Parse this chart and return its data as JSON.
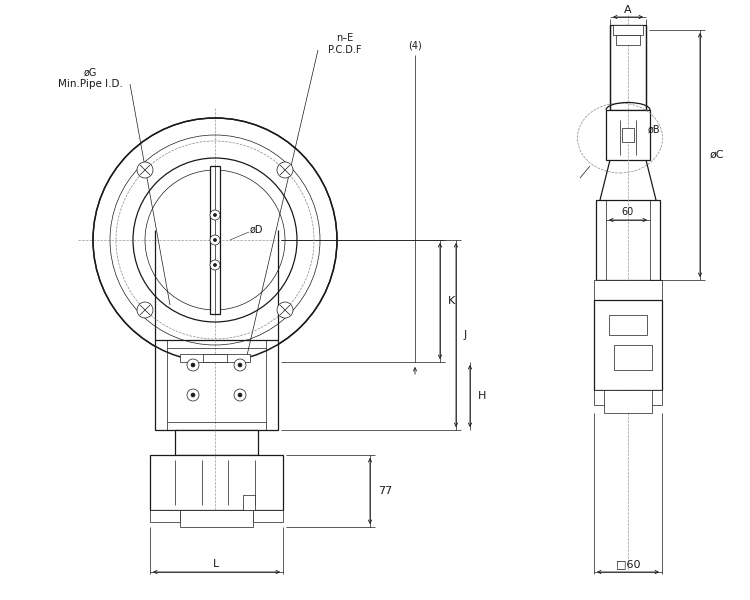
{
  "bg_color": "#ffffff",
  "line_color": "#1a1a1a",
  "dim_color": "#1a1a1a",
  "lw_main": 0.9,
  "lw_thin": 0.5,
  "lw_thick": 1.1,
  "annotations": {
    "phiG": "øG",
    "minPipeID": "Min.Pipe I.D.",
    "nE": "n–E",
    "PCDF": "P.C.D.F",
    "four": "(4)",
    "K": "K",
    "J": "J",
    "H": "H",
    "L": "L",
    "dim77": "77",
    "A": "A",
    "phiB": "øB",
    "phiC": "øC",
    "dim60": "60",
    "sq60": "□60",
    "phiD": "øD"
  }
}
